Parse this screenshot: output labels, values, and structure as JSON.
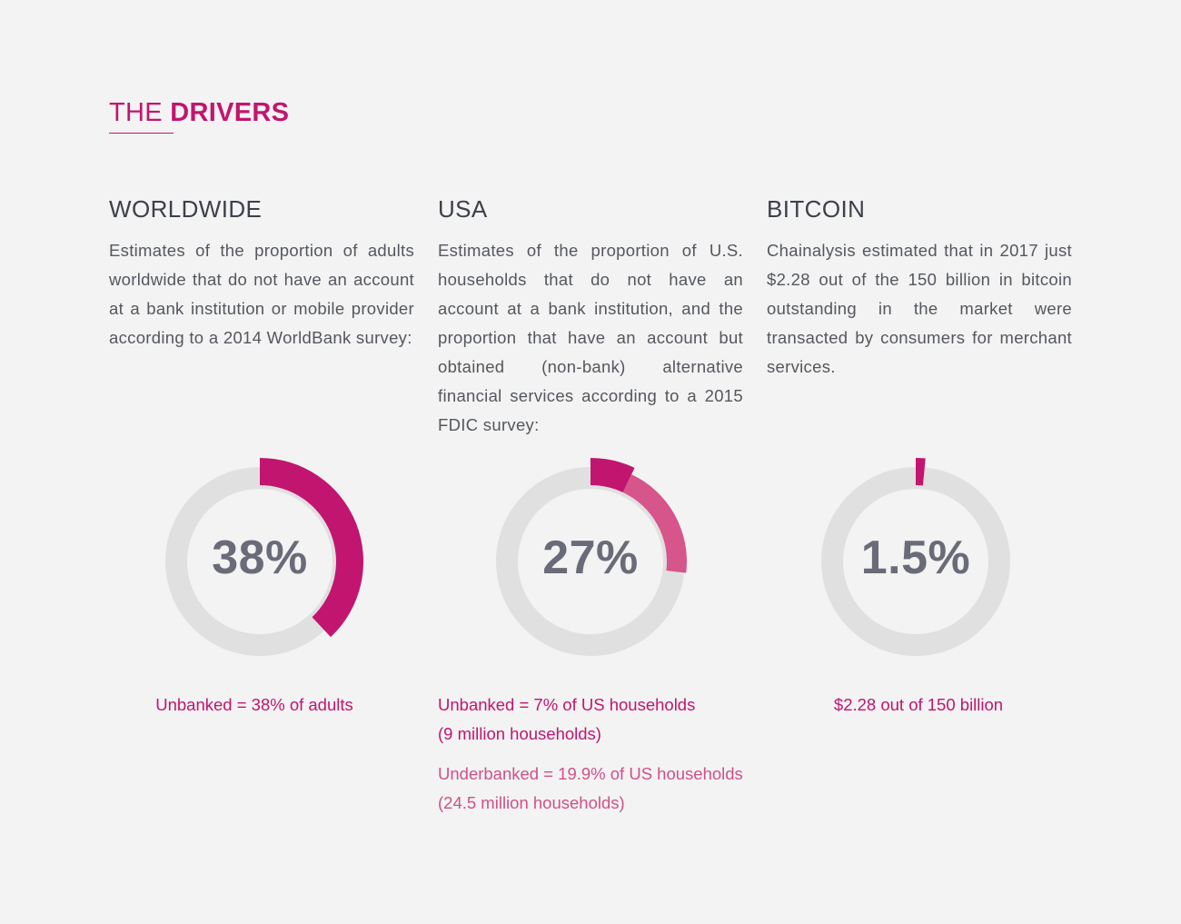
{
  "header": {
    "title_light": "THE",
    "title_bold": "DRIVERS",
    "accent_color": "#c2156f"
  },
  "columns": [
    {
      "heading": "WORLDWIDE",
      "description": "Estimates of the proportion of adults worldwide that do not have an account at a bank institution or mobile provider according to a 2014 WorldBank survey:"
    },
    {
      "heading": "USA",
      "description": "Estimates of the proportion of U.S. households that do not have an account at a bank institution, and the proportion that have an account but obtained (non-bank) alternative financial services according to a 2015 FDIC survey:"
    },
    {
      "heading": "BITCOIN",
      "description": "Chainalysis estimated that in 2017 just $2.28 out of the 150 billion in bitcoin outstanding in the market were transacted by consumers for merchant services."
    }
  ],
  "captions": {
    "worldwide": "Unbanked = 38% of adults",
    "usa_unbanked_1": "Unbanked = 7% of US households",
    "usa_unbanked_2": "(9 million households)",
    "usa_underbanked_1": "Underbanked = 19.9% of US households",
    "usa_underbanked_2": "(24.5 million households)",
    "bitcoin": "$2.28 out of 150 billion"
  },
  "chart_data": [
    {
      "type": "pie",
      "center_label": "38%",
      "track_color": "#e0e0e0",
      "series": [
        {
          "value": 38,
          "color": "#c2156f"
        }
      ]
    },
    {
      "type": "pie",
      "center_label": "27%",
      "track_color": "#e0e0e0",
      "series": [
        {
          "value": 7,
          "color": "#c2156f"
        },
        {
          "value": 19.9,
          "color": "#d6558b"
        }
      ]
    },
    {
      "type": "pie",
      "center_label": "1.5%",
      "track_color": "#e0e0e0",
      "series": [
        {
          "value": 1.5,
          "color": "#c2156f"
        }
      ]
    }
  ]
}
